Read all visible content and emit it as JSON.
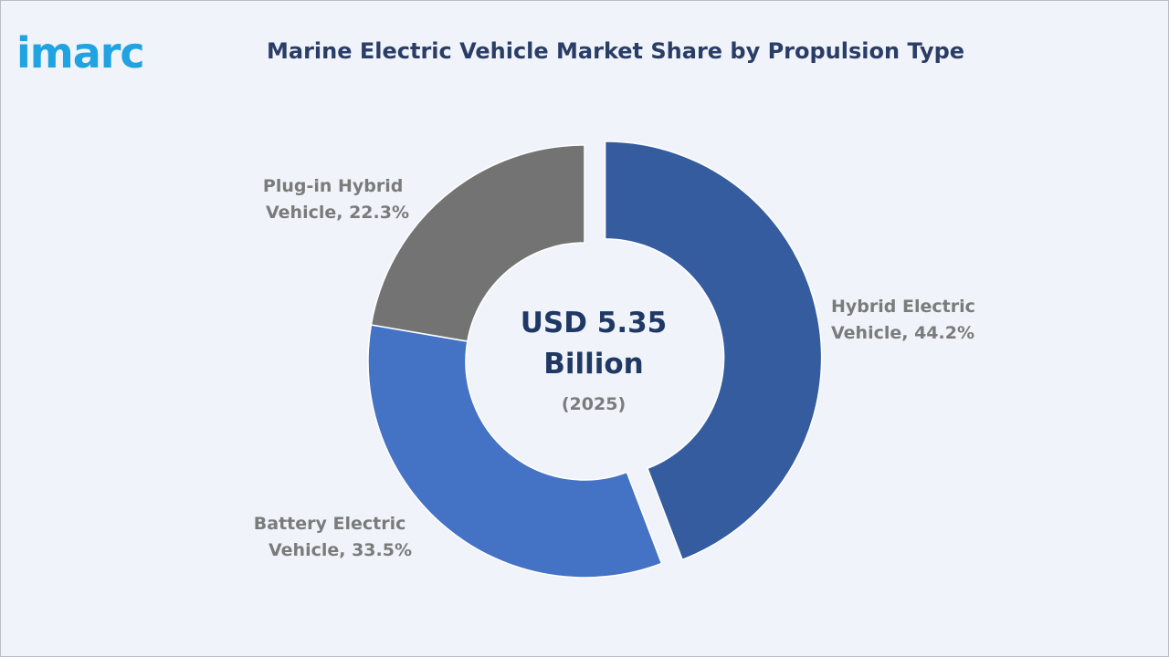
{
  "brand": {
    "logo_text": "imarc"
  },
  "chart_data": {
    "type": "pie",
    "title": "Marine Electric Vehicle Market Share by Propulsion Type",
    "center_value_line1": "USD 5.35",
    "center_value_line2": "Billion",
    "center_year": "(2025)",
    "slices": [
      {
        "name": "Hybrid Electric Vehicle",
        "value": 44.2,
        "label_line1": "Hybrid Electric",
        "label_line2": "Vehicle, 44.2%",
        "color": "#345c9f",
        "exploded": true
      },
      {
        "name": "Battery Electric Vehicle",
        "value": 33.5,
        "label_line1": "Battery Electric",
        "label_line2": "Vehicle, 33.5%",
        "color": "#4472c4",
        "exploded": false
      },
      {
        "name": "Plug-in Hybrid Vehicle",
        "value": 22.3,
        "label_line1": "Plug-in Hybrid",
        "label_line2": "Vehicle, 22.3%",
        "color": "#737373",
        "exploded": false
      }
    ]
  }
}
